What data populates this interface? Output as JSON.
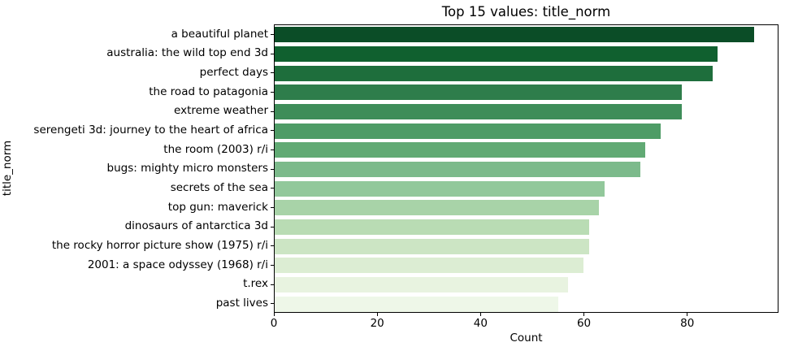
{
  "figure": {
    "title": "Top 15 values: title_norm",
    "xlabel": "Count",
    "ylabel": "title_norm"
  },
  "chart_data": {
    "type": "bar",
    "orientation": "horizontal",
    "title": "Top 15 values: title_norm",
    "xlabel": "Count",
    "ylabel": "title_norm",
    "categories": [
      "a beautiful planet",
      "australia: the wild top end 3d",
      "perfect days",
      "the road to patagonia",
      "extreme weather",
      "serengeti 3d: journey to the heart of africa",
      "the room (2003) r/i",
      "bugs: mighty micro monsters",
      "secrets of the sea",
      "top gun: maverick",
      "dinosaurs of antarctica 3d",
      "the rocky horror picture show (1975) r/i",
      "2001: a space odyssey (1968) r/i",
      "t.rex",
      "past lives"
    ],
    "values": [
      93,
      86,
      85,
      79,
      79,
      75,
      72,
      71,
      64,
      63,
      61,
      61,
      60,
      57,
      55
    ],
    "bar_colors": [
      "#0b4d27",
      "#10602f",
      "#1e6e3c",
      "#2e7d4b",
      "#3e8d59",
      "#4e9c66",
      "#61aa74",
      "#7cba8b",
      "#92c89b",
      "#a8d3a8",
      "#b9dcb4",
      "#cce5c4",
      "#dcedd3",
      "#e8f3e0",
      "#eef7e8"
    ],
    "xticks": [
      "0",
      "20",
      "40",
      "60",
      "80"
    ],
    "xtick_values": [
      0,
      20,
      40,
      60,
      80
    ],
    "xlim": [
      0,
      97.65
    ],
    "grid": false,
    "legend": null,
    "spine_color": "#000000",
    "background_color": "#ffffff"
  }
}
